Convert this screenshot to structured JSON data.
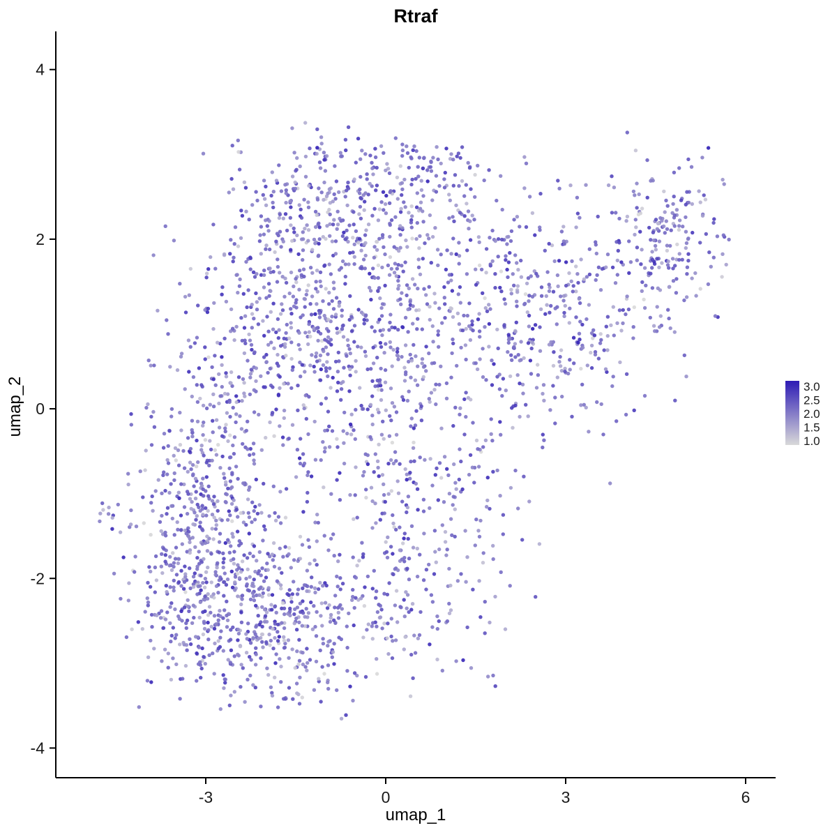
{
  "chart_data": {
    "type": "scatter",
    "title": "Rtraf",
    "xlabel": "umap_1",
    "ylabel": "umap_2",
    "xlim": [
      -5.5,
      6.5
    ],
    "ylim": [
      -4.35,
      4.45
    ],
    "x_ticks": [
      -3,
      0,
      3,
      6
    ],
    "y_ticks": [
      -4,
      -2,
      0,
      2,
      4
    ],
    "grid": false,
    "legend": {
      "position": "right",
      "labels": [
        "3.0",
        "2.5",
        "2.0",
        "1.5",
        "1.0"
      ],
      "values": [
        3.0,
        2.5,
        2.0,
        1.5,
        1.0
      ],
      "vmin": 1.0,
      "vmax": 3.0,
      "color_low": "#D9D9D9",
      "color_high": "#2D1BB5"
    },
    "point": {
      "radius": 2.7,
      "opacity": 0.9
    },
    "seed": 42,
    "clusters": [
      {
        "cx": -2.7,
        "cy": -2.2,
        "sx": 0.85,
        "sy": 0.6,
        "n": 520
      },
      {
        "cx": -1.6,
        "cy": -2.6,
        "sx": 0.7,
        "sy": 0.5,
        "n": 200
      },
      {
        "cx": -3.1,
        "cy": -0.9,
        "sx": 0.55,
        "sy": 0.7,
        "n": 180
      },
      {
        "cx": -2.4,
        "cy": 0.3,
        "sx": 0.7,
        "sy": 0.9,
        "n": 260
      },
      {
        "cx": -1.3,
        "cy": 1.3,
        "sx": 0.8,
        "sy": 0.8,
        "n": 280
      },
      {
        "cx": -0.9,
        "cy": 2.4,
        "sx": 1.0,
        "sy": 0.45,
        "n": 260
      },
      {
        "cx": 0.6,
        "cy": 2.8,
        "sx": 0.6,
        "sy": 0.25,
        "n": 80
      },
      {
        "cx": -0.2,
        "cy": 0.6,
        "sx": 0.8,
        "sy": 0.8,
        "n": 240
      },
      {
        "cx": 0.6,
        "cy": -0.9,
        "sx": 0.9,
        "sy": 0.9,
        "n": 220
      },
      {
        "cx": 1.6,
        "cy": 1.5,
        "sx": 0.8,
        "sy": 0.7,
        "n": 220
      },
      {
        "cx": 2.6,
        "cy": 0.6,
        "sx": 0.6,
        "sy": 0.7,
        "n": 120
      },
      {
        "cx": 3.6,
        "cy": 1.2,
        "sx": 0.7,
        "sy": 0.7,
        "n": 150
      },
      {
        "cx": 4.7,
        "cy": 2.1,
        "sx": 0.5,
        "sy": 0.55,
        "n": 170
      },
      {
        "cx": -4.6,
        "cy": -1.25,
        "sx": 0.12,
        "sy": 0.15,
        "n": 11
      },
      {
        "cx": 0.3,
        "cy": -2.2,
        "sx": 0.8,
        "sy": 0.55,
        "n": 140
      }
    ]
  }
}
